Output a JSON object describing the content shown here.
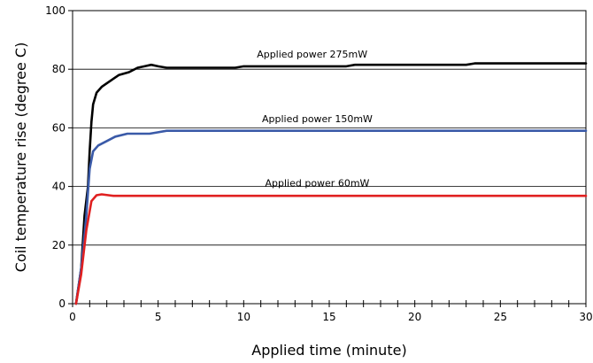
{
  "chart_data": {
    "type": "line",
    "title": "",
    "xlabel": "Applied time (minute)",
    "ylabel": "Coil temperature rise (degree C)",
    "xlim": [
      0,
      30
    ],
    "ylim": [
      0,
      100
    ],
    "xticks": [
      0,
      5,
      10,
      15,
      20,
      25,
      30
    ],
    "yticks": [
      0,
      20,
      40,
      60,
      80,
      100
    ],
    "grid": "horizontal",
    "legend": "none",
    "series": [
      {
        "name": "Applied power 275mW",
        "color": "#000000",
        "points": [
          [
            0.2,
            0
          ],
          [
            0.5,
            12
          ],
          [
            0.7,
            30
          ],
          [
            0.9,
            40
          ],
          [
            1.0,
            52
          ],
          [
            1.1,
            62
          ],
          [
            1.2,
            68
          ],
          [
            1.4,
            72
          ],
          [
            1.7,
            74
          ],
          [
            2.2,
            76
          ],
          [
            2.7,
            78
          ],
          [
            3.3,
            79
          ],
          [
            3.8,
            80.5
          ],
          [
            4.2,
            81
          ],
          [
            4.6,
            81.5
          ],
          [
            5.0,
            81
          ],
          [
            5.5,
            80.5
          ],
          [
            7,
            80.5
          ],
          [
            9.5,
            80.5
          ],
          [
            10,
            81
          ],
          [
            16,
            81
          ],
          [
            16.5,
            81.5
          ],
          [
            23,
            81.5
          ],
          [
            23.5,
            82
          ],
          [
            30,
            82
          ]
        ]
      },
      {
        "name": "Applied power 150mW",
        "color": "#3a5aa8",
        "points": [
          [
            0.2,
            0
          ],
          [
            0.5,
            12
          ],
          [
            0.8,
            30
          ],
          [
            1.0,
            46
          ],
          [
            1.2,
            52
          ],
          [
            1.5,
            54
          ],
          [
            2.0,
            55.5
          ],
          [
            2.5,
            57
          ],
          [
            3.2,
            58
          ],
          [
            4.5,
            58
          ],
          [
            5.0,
            58.5
          ],
          [
            5.5,
            59
          ],
          [
            30,
            59
          ]
        ]
      },
      {
        "name": "Applied power 60mW",
        "color": "#e02020",
        "points": [
          [
            0.2,
            0
          ],
          [
            0.5,
            10
          ],
          [
            0.8,
            25
          ],
          [
            1.1,
            35
          ],
          [
            1.4,
            37
          ],
          [
            1.7,
            37.3
          ],
          [
            2.1,
            37
          ],
          [
            2.4,
            36.8
          ],
          [
            30,
            36.8
          ]
        ]
      }
    ],
    "annotations": [
      {
        "text": "Applied power 275mW",
        "x": 14,
        "y": 84
      },
      {
        "text": "Applied power 150mW",
        "x": 14.3,
        "y": 62
      },
      {
        "text": "Applied power 60mW",
        "x": 14.3,
        "y": 40
      }
    ]
  }
}
